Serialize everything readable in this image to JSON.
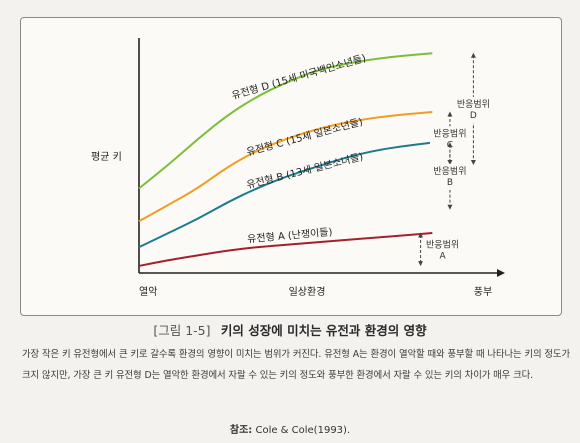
{
  "figure": {
    "number": "[그림 1-5]",
    "title": "키의 성장에 미치는 유전과 환경의 영향"
  },
  "description": "가장 작은 키 유전형에서 큰 키로 갈수록 환경의 영향이 미치는 범위가 커진다. 유전형 A는 환경이 열악할 때와 풍부할 때 나타나는 키의 정도가 크지 않지만, 가장 큰 키 유전형 D는 열악한 환경에서 자랄 수 있는 키의 정도와 풍부한 환경에서 자랄 수 있는 키의 차이가 매우 크다.",
  "source": {
    "label": "참조:",
    "text": "Cole & Cole(1993)."
  },
  "chart_data": {
    "type": "line",
    "ylabel": "평균 키",
    "xlabel": "일상환경",
    "x_left_label": "열악",
    "x_right_label": "풍부",
    "x": [
      0,
      1,
      2,
      3,
      4,
      5,
      6,
      7,
      8,
      9,
      10
    ],
    "xlim": [
      0,
      12
    ],
    "ylim": [
      0,
      100
    ],
    "grid": false,
    "series": [
      {
        "name": "유전형 D (15세 미국백인소년들)",
        "color": "#7cbf3a",
        "values": [
          36,
          46,
          57,
          67,
          75,
          81,
          86,
          89,
          91,
          92.5,
          93.5
        ],
        "range": [
          93.5,
          47
        ],
        "range_label": [
          "반응범위",
          "D"
        ]
      },
      {
        "name": "유전형 C (15세 일본소년들)",
        "color": "#f29d22",
        "values": [
          22,
          29,
          36,
          45,
          52,
          57,
          61,
          64,
          66,
          67.5,
          68.5
        ],
        "range": [
          68.5,
          47
        ],
        "range_label": [
          "반응범위",
          "C"
        ]
      },
      {
        "name": "유전형 B (13세 일본소녀들)",
        "color": "#1f7a8c",
        "values": [
          11,
          17,
          23,
          30,
          36,
          41,
          45,
          49,
          52,
          54,
          55.5
        ],
        "range": [
          55.5,
          28
        ],
        "range_label": [
          "반응범위",
          "B"
        ]
      },
      {
        "name": "유전형 A (난쟁이들)",
        "color": "#a5202c",
        "values": [
          3,
          5.5,
          7.5,
          9.5,
          11,
          12,
          13,
          14,
          15,
          16,
          17
        ],
        "range": [
          17,
          4
        ],
        "range_label": [
          "반응범위",
          "A"
        ]
      }
    ]
  }
}
